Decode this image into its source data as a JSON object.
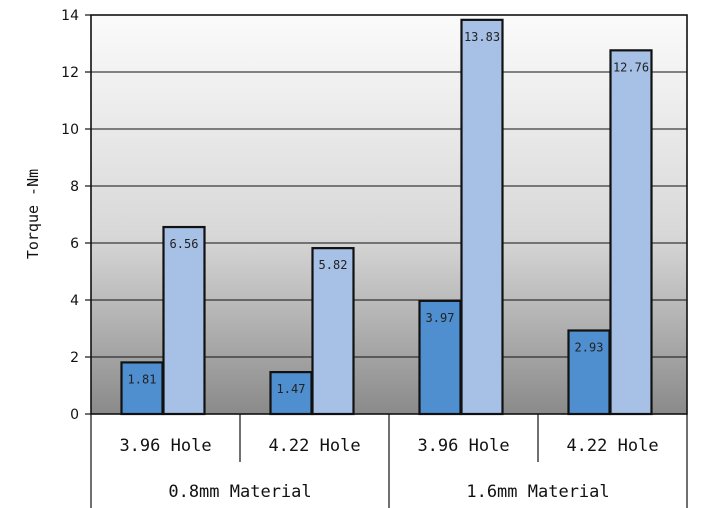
{
  "chart_data": {
    "type": "bar",
    "title": "",
    "xlabel": "",
    "ylabel": "Torque -Nm",
    "ylim": [
      0,
      14
    ],
    "yticks": [
      0,
      2,
      4,
      6,
      8,
      10,
      12,
      14
    ],
    "grid": true,
    "legend": "none",
    "groups": [
      {
        "label": "0.8mm Material",
        "categories": [
          "3.96 Hole",
          "4.22 Hole"
        ]
      },
      {
        "label": "1.6mm Material",
        "categories": [
          "3.96 Hole",
          "4.22 Hole"
        ]
      }
    ],
    "categories": [
      "3.96 Hole",
      "4.22 Hole",
      "3.96 Hole",
      "4.22 Hole"
    ],
    "series": [
      {
        "values": [
          1.81,
          1.47,
          3.97,
          2.93
        ],
        "color": "#4f8fd0"
      },
      {
        "values": [
          6.56,
          5.82,
          13.83,
          12.76
        ],
        "color": "#a6c0e6"
      }
    ],
    "data_labels": [
      [
        "1.81",
        "1.47",
        "3.97",
        "2.93"
      ],
      [
        "6.56",
        "5.82",
        "13.83",
        "12.76"
      ]
    ]
  }
}
